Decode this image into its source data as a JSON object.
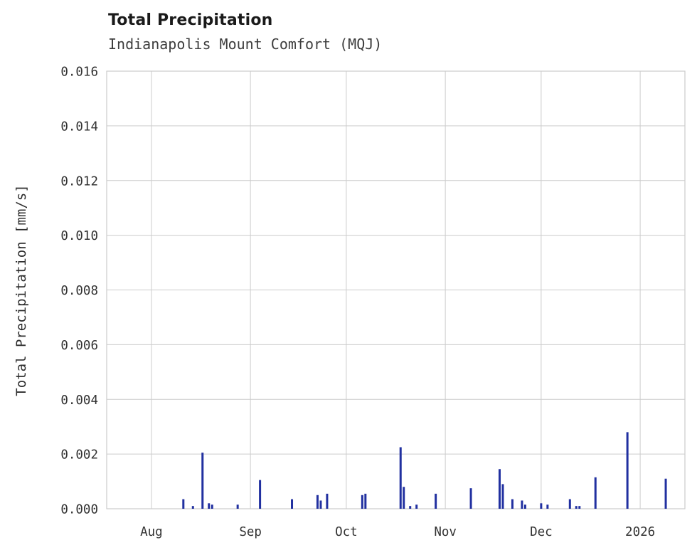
{
  "chart": {
    "title": "Total Precipitation",
    "subtitle": "Indianapolis Mount Comfort (MQJ)",
    "ylabel": "Total Precipitation [mm/s]"
  },
  "colors": {
    "bar": "#2130a0",
    "grid": "#cccccc",
    "axis_border": "#cccccc",
    "tick_text": "#333333"
  },
  "chart_data": {
    "type": "bar",
    "title": "Total Precipitation",
    "subtitle": "Indianapolis Mount Comfort (MQJ)",
    "xlabel": "",
    "ylabel": "Total Precipitation [mm/s]",
    "ylim": [
      0,
      0.016
    ],
    "grid": true,
    "legend": "none",
    "yticks": [
      {
        "value": 0.0,
        "label": "0.000"
      },
      {
        "value": 0.002,
        "label": "0.002"
      },
      {
        "value": 0.004,
        "label": "0.004"
      },
      {
        "value": 0.006,
        "label": "0.006"
      },
      {
        "value": 0.008,
        "label": "0.008"
      },
      {
        "value": 0.01,
        "label": "0.010"
      },
      {
        "value": 0.012,
        "label": "0.012"
      },
      {
        "value": 0.014,
        "label": "0.014"
      },
      {
        "value": 0.016,
        "label": "0.016"
      }
    ],
    "x_domain_days": [
      0,
      181
    ],
    "xticks": [
      {
        "day": 14,
        "label": "Aug"
      },
      {
        "day": 45,
        "label": "Sep"
      },
      {
        "day": 75,
        "label": "Oct"
      },
      {
        "day": 106,
        "label": "Nov"
      },
      {
        "day": 136,
        "label": "Dec"
      },
      {
        "day": 167,
        "label": "2026"
      }
    ],
    "series_name": "Total Precipitation [mm/s]",
    "points": [
      {
        "day": 24,
        "value": 0.00035
      },
      {
        "day": 27,
        "value": 0.0001
      },
      {
        "day": 30,
        "value": 0.00205
      },
      {
        "day": 32,
        "value": 0.0002
      },
      {
        "day": 33,
        "value": 0.00015
      },
      {
        "day": 41,
        "value": 0.00015
      },
      {
        "day": 48,
        "value": 0.00105
      },
      {
        "day": 58,
        "value": 0.00035
      },
      {
        "day": 66,
        "value": 0.0005
      },
      {
        "day": 67,
        "value": 0.0003
      },
      {
        "day": 69,
        "value": 0.00055
      },
      {
        "day": 80,
        "value": 0.0005
      },
      {
        "day": 81,
        "value": 0.00055
      },
      {
        "day": 92,
        "value": 0.00225
      },
      {
        "day": 93,
        "value": 0.0008
      },
      {
        "day": 95,
        "value": 0.0001
      },
      {
        "day": 97,
        "value": 0.00015
      },
      {
        "day": 103,
        "value": 0.00055
      },
      {
        "day": 114,
        "value": 0.00075
      },
      {
        "day": 123,
        "value": 0.00145
      },
      {
        "day": 124,
        "value": 0.0009
      },
      {
        "day": 127,
        "value": 0.00035
      },
      {
        "day": 130,
        "value": 0.0003
      },
      {
        "day": 131,
        "value": 0.00015
      },
      {
        "day": 136,
        "value": 0.0002
      },
      {
        "day": 138,
        "value": 0.00015
      },
      {
        "day": 145,
        "value": 0.00035
      },
      {
        "day": 147,
        "value": 0.0001
      },
      {
        "day": 148,
        "value": 0.0001
      },
      {
        "day": 153,
        "value": 0.00115
      },
      {
        "day": 163,
        "value": 0.0028
      },
      {
        "day": 175,
        "value": 0.0011
      }
    ]
  }
}
